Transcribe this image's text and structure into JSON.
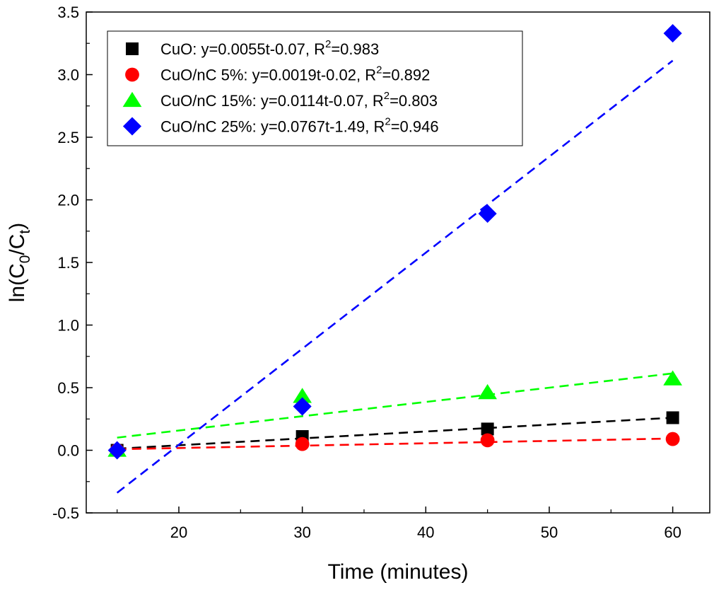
{
  "chart_data": {
    "type": "scatter",
    "xlabel": "Time (minutes)",
    "ylabel": {
      "prefix": "ln(C",
      "sub1": "0",
      "mid": "/C",
      "sub2": "t",
      "suffix": ")"
    },
    "xlim": [
      12.5,
      63
    ],
    "ylim": [
      -0.5,
      3.5
    ],
    "xticks": [
      20,
      30,
      40,
      50,
      60
    ],
    "yticks": [
      -0.5,
      0.0,
      0.5,
      1.0,
      1.5,
      2.0,
      2.5,
      3.0,
      3.5
    ],
    "grid": false,
    "legend_position": "top-left",
    "fit_line_style": "dashed",
    "series": [
      {
        "name": "CuO",
        "legend_label": "CuO: y=0.0055t-0.07, R²=0.983",
        "marker": "square",
        "color": "#000000",
        "x": [
          15,
          30,
          45,
          60
        ],
        "y": [
          0.0,
          0.11,
          0.17,
          0.26
        ],
        "fit": {
          "slope": 0.0055,
          "intercept": -0.07,
          "r2": 0.983,
          "x_range": [
            15,
            60
          ]
        }
      },
      {
        "name": "CuO/nC 5%",
        "legend_label": "CuO/nC 5%: y=0.0019t-0.02, R²=0.892",
        "marker": "circle",
        "color": "#ff0000",
        "x": [
          15,
          30,
          45,
          60
        ],
        "y": [
          0.0,
          0.05,
          0.08,
          0.09
        ],
        "fit": {
          "slope": 0.0019,
          "intercept": -0.02,
          "r2": 0.892,
          "x_range": [
            15,
            60
          ]
        }
      },
      {
        "name": "CuO/nC 15%",
        "legend_label": "CuO/nC 15%: y=0.0114t-0.07, R²=0.803",
        "marker": "triangle",
        "color": "#00ff00",
        "x": [
          15,
          30,
          45,
          60
        ],
        "y": [
          0.0,
          0.43,
          0.46,
          0.57
        ],
        "fit": {
          "slope": 0.0114,
          "intercept": -0.07,
          "r2": 0.803,
          "x_range": [
            15,
            60
          ]
        }
      },
      {
        "name": "CuO/nC 25%",
        "legend_label": "CuO/nC 25%: y=0.0767t-1.49, R²=0.946",
        "marker": "diamond",
        "color": "#0000ff",
        "x": [
          15,
          30,
          45,
          60
        ],
        "y": [
          0.0,
          0.35,
          1.89,
          3.33
        ],
        "fit": {
          "slope": 0.0767,
          "intercept": -1.49,
          "r2": 0.946,
          "x_range": [
            15,
            60
          ]
        }
      }
    ],
    "legend_text": [
      {
        "pre": "CuO: y=0.0055t-0.07, R",
        "sup": "2",
        "post": "=0.983"
      },
      {
        "pre": "CuO/nC 5%: y=0.0019t-0.02, R",
        "sup": "2",
        "post": "=0.892"
      },
      {
        "pre": "CuO/nC 15%: y=0.0114t-0.07, R",
        "sup": "2",
        "post": "=0.803"
      },
      {
        "pre": "CuO/nC 25%: y=0.0767t-1.49, R",
        "sup": "2",
        "post": "=0.946"
      }
    ]
  }
}
